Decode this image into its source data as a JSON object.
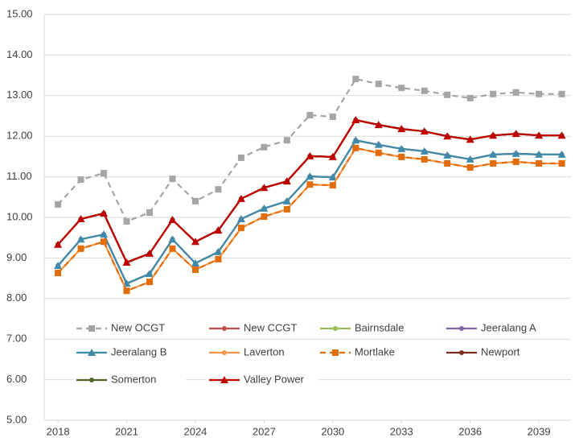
{
  "chart_data": {
    "type": "line",
    "grid": true,
    "legend": "inside-bottom",
    "x": [
      2018,
      2019,
      2020,
      2021,
      2022,
      2023,
      2024,
      2025,
      2026,
      2027,
      2028,
      2029,
      2030,
      2031,
      2032,
      2033,
      2034,
      2035,
      2036,
      2037,
      2038,
      2039,
      2040
    ],
    "xlim": [
      2017.4,
      2040.4
    ],
    "xticks": [
      2018,
      2021,
      2024,
      2027,
      2030,
      2033,
      2036,
      2039
    ],
    "ylim": [
      5,
      15
    ],
    "yticks": [
      {
        "value": 5,
        "label": "5.00"
      },
      {
        "value": 6,
        "label": "6.00"
      },
      {
        "value": 7,
        "label": "7.00"
      },
      {
        "value": 8,
        "label": "8.00"
      },
      {
        "value": 9,
        "label": "9.00"
      },
      {
        "value": 10,
        "label": "10.00"
      },
      {
        "value": 11,
        "label": "11.00"
      },
      {
        "value": 12,
        "label": "12.00"
      },
      {
        "value": 13,
        "label": "13.00"
      },
      {
        "value": 14,
        "label": "14.00"
      },
      {
        "value": 15,
        "label": "15.00"
      }
    ],
    "series": [
      {
        "name": "New OCGT",
        "color": "#a5a5a5",
        "dash": true,
        "marker": "square",
        "values": [
          10.32,
          10.93,
          11.09,
          9.9,
          10.12,
          10.95,
          10.4,
          10.69,
          11.47,
          11.73,
          11.9,
          12.52,
          12.48,
          13.41,
          13.29,
          13.19,
          13.12,
          13.02,
          12.94,
          13.04,
          13.08,
          13.04,
          13.04
        ]
      },
      {
        "name": "New CCGT",
        "color": "#c0504d",
        "dash": false,
        "marker": "circle",
        "values": [
          9.33,
          9.96,
          10.1,
          8.89,
          9.11,
          9.94,
          9.4,
          9.68,
          10.46,
          10.73,
          10.89,
          11.51,
          11.49,
          12.4,
          12.28,
          12.18,
          12.12,
          12.0,
          11.92,
          12.02,
          12.06,
          12.02,
          12.02
        ]
      },
      {
        "name": "Bairnsdale",
        "color": "#9bbb59",
        "dash": false,
        "marker": "circle",
        "values": [
          8.81,
          9.46,
          9.58,
          8.37,
          8.61,
          9.46,
          8.87,
          9.15,
          9.96,
          10.22,
          10.4,
          11.01,
          10.99,
          11.9,
          11.79,
          11.69,
          11.63,
          11.53,
          11.43,
          11.55,
          11.57,
          11.55,
          11.55
        ]
      },
      {
        "name": "Jeeralang A",
        "color": "#8064a2",
        "dash": false,
        "marker": "circle",
        "values": [
          8.81,
          9.46,
          9.58,
          8.37,
          8.61,
          9.46,
          8.87,
          9.15,
          9.96,
          10.22,
          10.4,
          11.01,
          10.99,
          11.9,
          11.79,
          11.69,
          11.63,
          11.53,
          11.43,
          11.55,
          11.57,
          11.55,
          11.55
        ]
      },
      {
        "name": "Jeeralang B",
        "color": "#3f8aa8",
        "dash": false,
        "marker": "triangle",
        "values": [
          8.81,
          9.46,
          9.58,
          8.37,
          8.61,
          9.46,
          8.87,
          9.15,
          9.96,
          10.22,
          10.4,
          11.01,
          10.99,
          11.9,
          11.79,
          11.69,
          11.63,
          11.53,
          11.43,
          11.55,
          11.57,
          11.55,
          11.55
        ]
      },
      {
        "name": "Laverton",
        "color": "#f79646",
        "dash": false,
        "marker": "circle",
        "values": [
          8.63,
          9.23,
          9.4,
          8.19,
          8.41,
          9.23,
          8.71,
          8.97,
          9.74,
          10.02,
          10.2,
          10.81,
          10.79,
          11.71,
          11.59,
          11.49,
          11.43,
          11.33,
          11.23,
          11.33,
          11.37,
          11.33,
          11.33
        ]
      },
      {
        "name": "Mortlake",
        "color": "#e36c0a",
        "dash": true,
        "marker": "square",
        "values": [
          8.63,
          9.23,
          9.4,
          8.19,
          8.41,
          9.23,
          8.71,
          8.97,
          9.74,
          10.02,
          10.2,
          10.81,
          10.79,
          11.71,
          11.59,
          11.49,
          11.43,
          11.33,
          11.23,
          11.33,
          11.37,
          11.33,
          11.33
        ]
      },
      {
        "name": "Newport",
        "color": "#7b2c1e",
        "dash": false,
        "marker": "circle",
        "values": [
          9.33,
          9.96,
          10.1,
          8.89,
          9.11,
          9.94,
          9.4,
          9.68,
          10.46,
          10.73,
          10.89,
          11.51,
          11.49,
          12.4,
          12.28,
          12.18,
          12.12,
          12.0,
          11.92,
          12.02,
          12.06,
          12.02,
          12.02
        ]
      },
      {
        "name": "Somerton",
        "color": "#4f6228",
        "dash": false,
        "marker": "circle",
        "values": [
          9.33,
          9.96,
          10.1,
          8.89,
          9.11,
          9.94,
          9.4,
          9.68,
          10.46,
          10.73,
          10.89,
          11.51,
          11.49,
          12.4,
          12.28,
          12.18,
          12.12,
          12.0,
          11.92,
          12.02,
          12.06,
          12.02,
          12.02
        ]
      },
      {
        "name": "Valley Power",
        "color": "#c00000",
        "dash": false,
        "marker": "triangle",
        "values": [
          9.33,
          9.96,
          10.1,
          8.89,
          9.11,
          9.94,
          9.4,
          9.68,
          10.46,
          10.73,
          10.89,
          11.51,
          11.49,
          12.4,
          12.28,
          12.18,
          12.12,
          12.0,
          11.92,
          12.02,
          12.06,
          12.02,
          12.02
        ]
      }
    ]
  }
}
